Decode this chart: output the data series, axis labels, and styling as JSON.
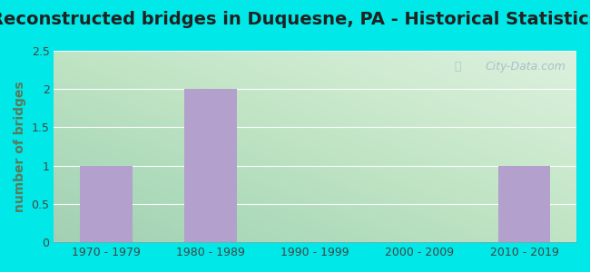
{
  "title": "Reconstructed bridges in Duquesne, PA - Historical Statistics",
  "categories": [
    "1970 - 1979",
    "1980 - 1989",
    "1990 - 1999",
    "2000 - 2009",
    "2010 - 2019"
  ],
  "values": [
    1,
    2,
    0,
    0,
    1
  ],
  "bar_color": "#b3a0cc",
  "ylabel": "number of bridges",
  "ylim": [
    0,
    2.5
  ],
  "yticks": [
    0,
    0.5,
    1,
    1.5,
    2,
    2.5
  ],
  "background_outer": "#00e8e8",
  "title_fontsize": 14,
  "axis_label_fontsize": 10,
  "tick_fontsize": 9,
  "watermark": "City-Data.com"
}
